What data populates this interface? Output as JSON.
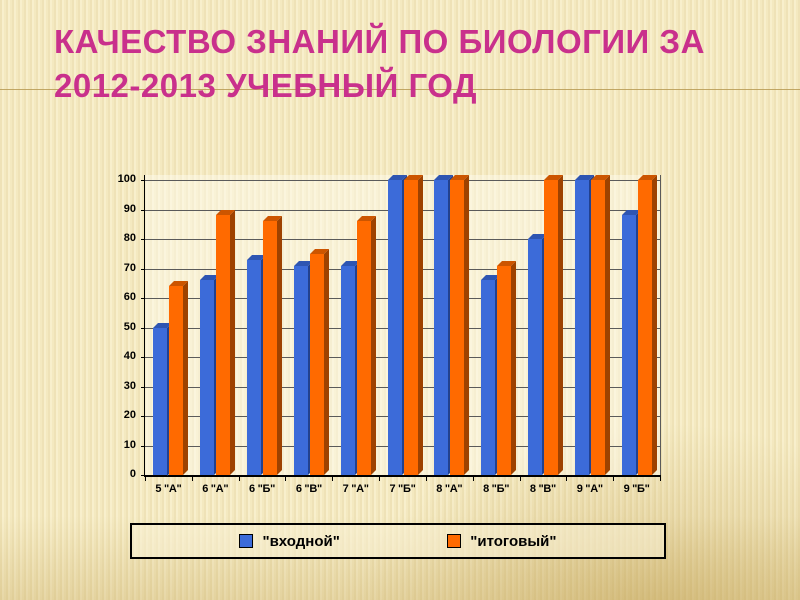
{
  "slide": {
    "title_line1": "КАЧЕСТВО ЗНАНИЙ ПО БИОЛОГИИ ЗА",
    "title_line2": "2012-2013 УЧЕБНЫЙ ГОД",
    "accent_color": "#c9308c",
    "rule_color": "#b79a52",
    "background_color": "#f7edc6"
  },
  "chart_data": {
    "type": "bar",
    "title": "",
    "xlabel": "",
    "ylabel": "",
    "categories": [
      "5 \"А\"",
      "6 \"А\"",
      "6 \"Б\"",
      "6 \"В\"",
      "7 \"А\"",
      "7 \"Б\"",
      "8 \"А\"",
      "8 \"Б\"",
      "8 \"В\"",
      "9 \"А\"",
      "9 \"Б\""
    ],
    "series": [
      {
        "name": "\"входной\"",
        "color": "#3c6bd9",
        "side_color": "#22418f",
        "top_color": "#2e55b2",
        "values": [
          50,
          66,
          73,
          71,
          71,
          100,
          100,
          66,
          80,
          100,
          88
        ]
      },
      {
        "name": "\"итоговый\"",
        "color": "#ff6a00",
        "side_color": "#9e4200",
        "top_color": "#cc5500",
        "values": [
          64,
          88,
          86,
          75,
          86,
          100,
          100,
          71,
          100,
          100,
          100
        ]
      }
    ],
    "ylim": [
      0,
      100
    ],
    "ytick_step": 10,
    "yticks": [
      0,
      10,
      20,
      30,
      40,
      50,
      60,
      70,
      80,
      90,
      100
    ],
    "grid": true,
    "legend_position": "bottom",
    "bar_style": "3d"
  }
}
